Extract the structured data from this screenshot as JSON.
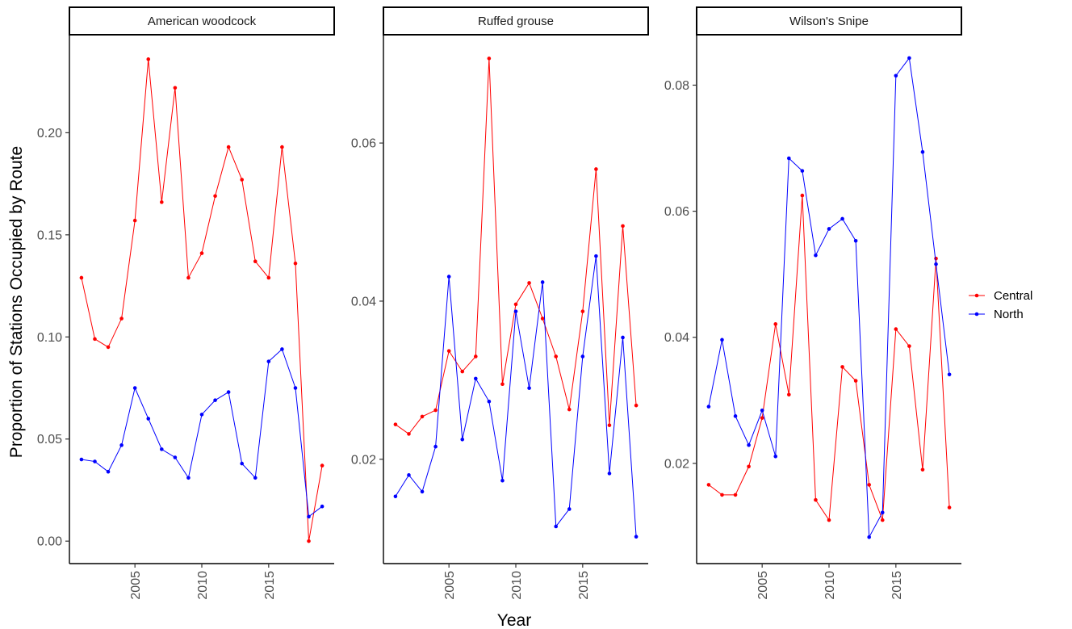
{
  "chart_data": {
    "type": "line",
    "ylabel": "Proportion of Stations Occupied by Route",
    "xlabel": "Year",
    "legend": {
      "position": "right",
      "entries": [
        "Central",
        "North"
      ]
    },
    "colors": {
      "Central": "#ff0000",
      "North": "#0000ff"
    },
    "grid": false,
    "x": [
      2001,
      2002,
      2003,
      2004,
      2005,
      2006,
      2007,
      2008,
      2009,
      2010,
      2011,
      2012,
      2013,
      2014,
      2015,
      2016,
      2017,
      2018,
      2019
    ],
    "panels": [
      {
        "title": "American woodcock",
        "ylim": [
          -0.011,
          0.248
        ],
        "yticks": [
          0.0,
          0.05,
          0.1,
          0.15,
          0.2
        ],
        "ytick_labels": [
          "0.00",
          "0.05",
          "0.10",
          "0.15",
          "0.20"
        ],
        "xticks": [
          2005,
          2010,
          2015
        ],
        "xtick_labels": [
          "2005",
          "2010",
          "2015"
        ],
        "series": [
          {
            "name": "Central",
            "values": [
              0.129,
              0.099,
              0.095,
              0.109,
              0.157,
              0.236,
              0.166,
              0.222,
              0.129,
              0.141,
              0.169,
              0.193,
              0.177,
              0.137,
              0.129,
              0.193,
              0.136,
              0.0,
              0.037
            ]
          },
          {
            "name": "North",
            "values": [
              0.04,
              0.039,
              0.034,
              0.047,
              0.075,
              0.06,
              0.045,
              0.041,
              0.031,
              0.062,
              0.069,
              0.073,
              0.038,
              0.031,
              0.088,
              0.094,
              0.075,
              0.012,
              0.017
            ]
          }
        ]
      },
      {
        "title": "Ruffed grouse",
        "ylim": [
          0.0068,
          0.0737
        ],
        "yticks": [
          0.02,
          0.04,
          0.06
        ],
        "ytick_labels": [
          "0.02",
          "0.04",
          "0.06"
        ],
        "xticks": [
          2005,
          2010,
          2015
        ],
        "xtick_labels": [
          "2005",
          "2010",
          "2015"
        ],
        "series": [
          {
            "name": "Central",
            "values": [
              0.0244,
              0.0232,
              0.0254,
              0.0262,
              0.0337,
              0.0311,
              0.033,
              0.0707,
              0.0295,
              0.0396,
              0.0423,
              0.0378,
              0.033,
              0.0263,
              0.0387,
              0.0567,
              0.0243,
              0.0495,
              0.0268
            ]
          },
          {
            "name": "North",
            "values": [
              0.0153,
              0.018,
              0.0159,
              0.0216,
              0.0431,
              0.0225,
              0.0302,
              0.0273,
              0.0173,
              0.0387,
              0.029,
              0.0424,
              0.0115,
              0.0137,
              0.033,
              0.0457,
              0.0182,
              0.0354,
              0.0102
            ]
          }
        ]
      },
      {
        "title": "Wilson's Snipe",
        "ylim": [
          0.0041,
          0.088
        ],
        "yticks": [
          0.02,
          0.04,
          0.06,
          0.08
        ],
        "ytick_labels": [
          "0.02",
          "0.04",
          "0.06",
          "0.08"
        ],
        "xticks": [
          2005,
          2010,
          2015
        ],
        "xtick_labels": [
          "2005",
          "2010",
          "2015"
        ],
        "series": [
          {
            "name": "Central",
            "values": [
              0.0166,
              0.015,
              0.015,
              0.0195,
              0.0272,
              0.0421,
              0.0309,
              0.0625,
              0.0142,
              0.011,
              0.0353,
              0.0331,
              0.0166,
              0.011,
              0.0413,
              0.0386,
              0.019,
              0.0525,
              0.013
            ]
          },
          {
            "name": "North",
            "values": [
              0.029,
              0.0396,
              0.0275,
              0.0229,
              0.0284,
              0.0211,
              0.0684,
              0.0664,
              0.053,
              0.0572,
              0.0588,
              0.0553,
              0.0083,
              0.0122,
              0.0815,
              0.0843,
              0.0694,
              0.0516,
              0.0341
            ]
          }
        ]
      }
    ]
  }
}
